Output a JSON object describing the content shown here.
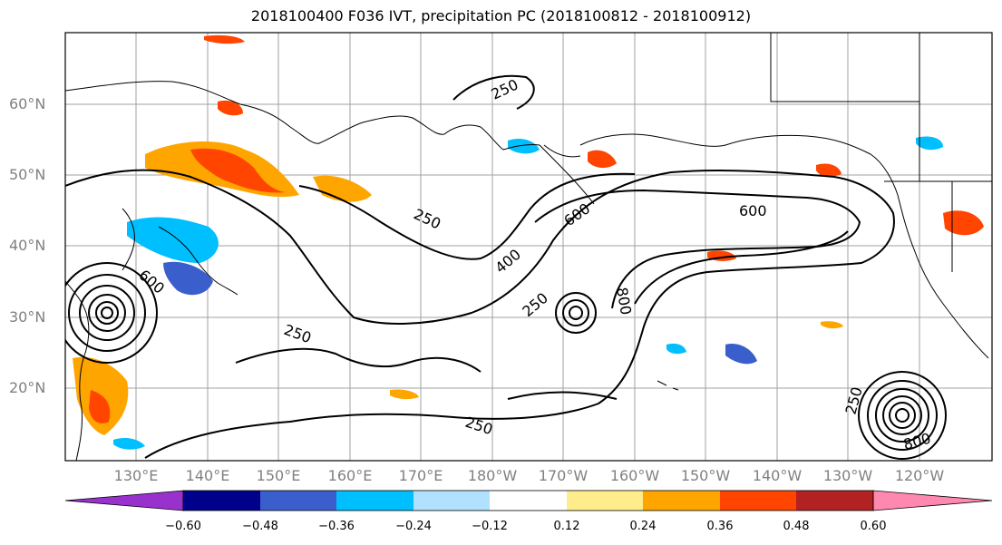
{
  "title": "2018100400 F036 IVT, precipitation PC (2018100812 - 2018100912)",
  "map": {
    "lat_labels": [
      "60°N",
      "50°N",
      "40°N",
      "30°N",
      "20°N"
    ],
    "lon_labels": [
      "130°E",
      "140°E",
      "150°E",
      "160°E",
      "170°E",
      "180°W",
      "170°W",
      "160°W",
      "150°W",
      "140°W",
      "130°W",
      "120°W"
    ],
    "contour_labels": [
      "250",
      "250",
      "600",
      "400",
      "250",
      "600",
      "250",
      "800",
      "250",
      "250",
      "600",
      "800"
    ],
    "colors": {
      "coastline": "#000000",
      "contour": "#000000",
      "grid": "#a0a0a0"
    }
  },
  "colorbar": {
    "ticks": [
      "−0.60",
      "−0.48",
      "−0.36",
      "−0.24",
      "−0.12",
      "0.12",
      "0.24",
      "0.36",
      "0.48",
      "0.60"
    ],
    "colors": [
      "#9932cc",
      "#00008b",
      "#3a5fcd",
      "#00bfff",
      "#b0e2ff",
      "#ffffff",
      "#ffec8b",
      "#ffa500",
      "#ff4500",
      "#b22222",
      "#ff88b0"
    ]
  }
}
